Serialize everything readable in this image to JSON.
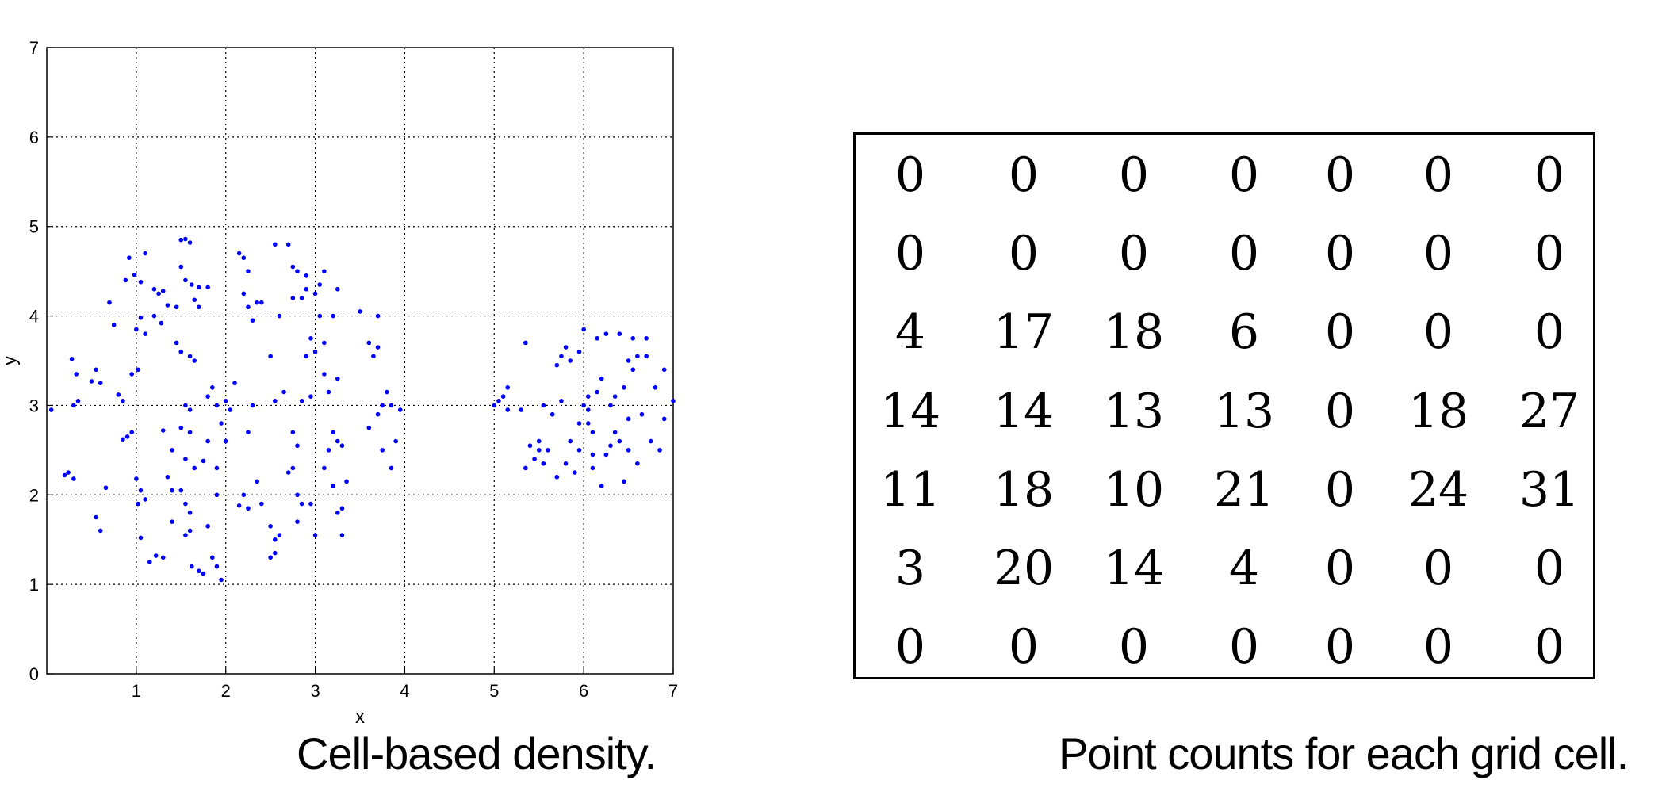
{
  "chart_data": [
    {
      "type": "scatter",
      "xlabel": "x",
      "ylabel": "y",
      "xlim": [
        0,
        7
      ],
      "ylim": [
        0,
        7
      ],
      "xticks": [
        "1",
        "2",
        "3",
        "4",
        "5",
        "6",
        "7"
      ],
      "yticks": [
        "0",
        "1",
        "2",
        "3",
        "4",
        "5",
        "6",
        "7"
      ],
      "grid": true,
      "point_color": "#0000ff",
      "points": [
        [
          0.05,
          2.95
        ],
        [
          0.28,
          3.52
        ],
        [
          0.3,
          3.0
        ],
        [
          0.33,
          3.35
        ],
        [
          0.35,
          3.05
        ],
        [
          0.2,
          2.22
        ],
        [
          0.24,
          2.25
        ],
        [
          0.3,
          2.18
        ],
        [
          0.5,
          3.27
        ],
        [
          0.55,
          3.4
        ],
        [
          0.6,
          3.25
        ],
        [
          0.66,
          2.08
        ],
        [
          0.55,
          1.75
        ],
        [
          0.6,
          1.6
        ],
        [
          0.7,
          4.15
        ],
        [
          0.75,
          3.9
        ],
        [
          0.8,
          3.12
        ],
        [
          0.85,
          3.05
        ],
        [
          0.85,
          2.62
        ],
        [
          0.9,
          2.65
        ],
        [
          0.95,
          2.7
        ],
        [
          0.88,
          4.4
        ],
        [
          0.92,
          4.65
        ],
        [
          0.98,
          4.46
        ],
        [
          1.05,
          4.38
        ],
        [
          1.1,
          4.7
        ],
        [
          1.0,
          3.85
        ],
        [
          1.05,
          3.98
        ],
        [
          1.1,
          3.8
        ],
        [
          0.95,
          3.35
        ],
        [
          1.02,
          3.4
        ],
        [
          1.0,
          2.18
        ],
        [
          1.05,
          2.05
        ],
        [
          1.1,
          1.95
        ],
        [
          1.05,
          1.52
        ],
        [
          1.15,
          1.25
        ],
        [
          1.22,
          1.32
        ],
        [
          1.3,
          1.3
        ],
        [
          1.02,
          1.9
        ],
        [
          1.2,
          4.3
        ],
        [
          1.25,
          4.25
        ],
        [
          1.3,
          4.28
        ],
        [
          1.2,
          4.0
        ],
        [
          1.28,
          3.92
        ],
        [
          1.35,
          4.12
        ],
        [
          1.45,
          4.1
        ],
        [
          1.5,
          4.85
        ],
        [
          1.55,
          4.86
        ],
        [
          1.6,
          4.82
        ],
        [
          1.5,
          4.55
        ],
        [
          1.55,
          4.4
        ],
        [
          1.62,
          4.35
        ],
        [
          1.7,
          4.32
        ],
        [
          1.8,
          4.32
        ],
        [
          1.65,
          4.18
        ],
        [
          1.7,
          4.1
        ],
        [
          1.45,
          3.7
        ],
        [
          1.5,
          3.6
        ],
        [
          1.6,
          3.55
        ],
        [
          1.65,
          3.5
        ],
        [
          1.55,
          3.0
        ],
        [
          1.6,
          2.95
        ],
        [
          1.5,
          2.75
        ],
        [
          1.6,
          2.7
        ],
        [
          1.55,
          2.4
        ],
        [
          1.65,
          2.3
        ],
        [
          1.75,
          2.38
        ],
        [
          1.5,
          2.05
        ],
        [
          1.55,
          1.9
        ],
        [
          1.6,
          1.8
        ],
        [
          1.6,
          1.6
        ],
        [
          1.55,
          1.55
        ],
        [
          1.62,
          1.2
        ],
        [
          1.7,
          1.15
        ],
        [
          1.75,
          1.12
        ],
        [
          1.8,
          1.65
        ],
        [
          1.85,
          1.3
        ],
        [
          1.9,
          1.2
        ],
        [
          1.95,
          1.05
        ],
        [
          1.9,
          2.0
        ],
        [
          1.9,
          2.3
        ],
        [
          1.8,
          3.1
        ],
        [
          1.85,
          3.2
        ],
        [
          1.9,
          3.0
        ],
        [
          1.95,
          2.8
        ],
        [
          2.0,
          2.6
        ],
        [
          1.3,
          2.72
        ],
        [
          1.4,
          2.5
        ],
        [
          1.35,
          2.2
        ],
        [
          1.4,
          2.05
        ],
        [
          1.4,
          1.7
        ],
        [
          1.8,
          2.6
        ],
        [
          2.0,
          3.05
        ],
        [
          2.05,
          2.95
        ],
        [
          2.1,
          3.25
        ],
        [
          2.15,
          4.7
        ],
        [
          2.2,
          4.65
        ],
        [
          2.25,
          4.5
        ],
        [
          2.2,
          4.25
        ],
        [
          2.25,
          4.1
        ],
        [
          2.3,
          3.95
        ],
        [
          2.35,
          4.15
        ],
        [
          2.4,
          4.15
        ],
        [
          2.3,
          3.0
        ],
        [
          2.25,
          2.7
        ],
        [
          2.2,
          2.0
        ],
        [
          2.15,
          1.88
        ],
        [
          2.25,
          1.85
        ],
        [
          2.35,
          2.15
        ],
        [
          2.4,
          1.9
        ],
        [
          2.5,
          1.65
        ],
        [
          2.55,
          1.5
        ],
        [
          2.5,
          1.3
        ],
        [
          2.55,
          1.35
        ],
        [
          2.6,
          1.55
        ],
        [
          2.55,
          3.05
        ],
        [
          2.65,
          3.15
        ],
        [
          2.5,
          3.55
        ],
        [
          2.6,
          4.0
        ],
        [
          2.55,
          4.8
        ],
        [
          2.7,
          4.8
        ],
        [
          2.75,
          4.55
        ],
        [
          2.8,
          4.5
        ],
        [
          2.9,
          4.45
        ],
        [
          2.75,
          4.2
        ],
        [
          2.85,
          4.2
        ],
        [
          2.9,
          4.3
        ],
        [
          3.0,
          4.25
        ],
        [
          3.05,
          4.35
        ],
        [
          3.1,
          4.5
        ],
        [
          2.95,
          3.75
        ],
        [
          2.9,
          3.55
        ],
        [
          3.0,
          3.6
        ],
        [
          2.85,
          3.05
        ],
        [
          2.95,
          3.1
        ],
        [
          2.75,
          2.7
        ],
        [
          2.8,
          2.55
        ],
        [
          2.7,
          2.25
        ],
        [
          2.75,
          2.3
        ],
        [
          2.8,
          2.0
        ],
        [
          2.85,
          1.9
        ],
        [
          2.8,
          1.7
        ],
        [
          2.95,
          1.9
        ],
        [
          3.0,
          1.55
        ],
        [
          3.1,
          3.7
        ],
        [
          3.2,
          4.0
        ],
        [
          3.05,
          4.0
        ],
        [
          3.25,
          4.3
        ],
        [
          3.1,
          3.35
        ],
        [
          3.15,
          3.15
        ],
        [
          3.25,
          3.3
        ],
        [
          3.2,
          2.7
        ],
        [
          3.25,
          2.6
        ],
        [
          3.3,
          2.55
        ],
        [
          3.15,
          2.5
        ],
        [
          3.1,
          2.3
        ],
        [
          3.2,
          2.1
        ],
        [
          3.25,
          1.8
        ],
        [
          3.3,
          1.85
        ],
        [
          3.3,
          1.55
        ],
        [
          3.35,
          2.15
        ],
        [
          3.5,
          4.05
        ],
        [
          3.6,
          3.7
        ],
        [
          3.65,
          3.55
        ],
        [
          3.7,
          3.65
        ],
        [
          3.6,
          2.75
        ],
        [
          3.7,
          2.9
        ],
        [
          3.75,
          3.0
        ],
        [
          3.75,
          2.5
        ],
        [
          3.8,
          3.15
        ],
        [
          3.85,
          3.0
        ],
        [
          3.85,
          2.3
        ],
        [
          3.9,
          2.6
        ],
        [
          3.7,
          4.0
        ],
        [
          3.95,
          2.95
        ],
        [
          5.0,
          3.0
        ],
        [
          5.05,
          3.05
        ],
        [
          5.1,
          3.1
        ],
        [
          5.15,
          3.2
        ],
        [
          5.15,
          2.95
        ],
        [
          5.3,
          2.95
        ],
        [
          5.35,
          3.7
        ],
        [
          5.4,
          2.55
        ],
        [
          5.35,
          2.3
        ],
        [
          5.45,
          2.4
        ],
        [
          5.5,
          2.5
        ],
        [
          5.55,
          3.0
        ],
        [
          5.5,
          2.6
        ],
        [
          5.55,
          2.35
        ],
        [
          5.6,
          2.5
        ],
        [
          5.65,
          2.9
        ],
        [
          5.7,
          2.2
        ],
        [
          5.75,
          3.05
        ],
        [
          5.7,
          3.45
        ],
        [
          5.75,
          3.55
        ],
        [
          5.8,
          3.65
        ],
        [
          5.85,
          3.5
        ],
        [
          5.8,
          2.35
        ],
        [
          5.85,
          2.6
        ],
        [
          5.9,
          2.25
        ],
        [
          5.95,
          2.5
        ],
        [
          5.95,
          3.6
        ],
        [
          6.0,
          3.85
        ],
        [
          5.95,
          2.8
        ],
        [
          6.0,
          3.0
        ],
        [
          6.05,
          2.8
        ],
        [
          6.05,
          3.1
        ],
        [
          6.1,
          2.7
        ],
        [
          6.1,
          2.45
        ],
        [
          6.1,
          2.3
        ],
        [
          6.15,
          3.15
        ],
        [
          6.2,
          3.3
        ],
        [
          6.15,
          3.75
        ],
        [
          6.2,
          2.1
        ],
        [
          6.25,
          2.45
        ],
        [
          6.3,
          2.55
        ],
        [
          6.25,
          3.8
        ],
        [
          6.3,
          3.0
        ],
        [
          6.35,
          2.7
        ],
        [
          6.4,
          2.6
        ],
        [
          6.45,
          3.2
        ],
        [
          6.45,
          2.15
        ],
        [
          6.5,
          2.5
        ],
        [
          6.5,
          3.5
        ],
        [
          6.55,
          3.75
        ],
        [
          6.55,
          3.4
        ],
        [
          6.6,
          3.55
        ],
        [
          6.6,
          2.35
        ],
        [
          6.65,
          2.9
        ],
        [
          6.7,
          3.75
        ],
        [
          6.7,
          3.55
        ],
        [
          6.75,
          2.6
        ],
        [
          6.8,
          3.2
        ],
        [
          6.85,
          2.5
        ],
        [
          6.9,
          3.4
        ],
        [
          6.9,
          2.85
        ],
        [
          7.0,
          3.05
        ],
        [
          6.4,
          3.8
        ],
        [
          6.5,
          2.85
        ],
        [
          6.35,
          3.1
        ],
        [
          6.05,
          2.95
        ]
      ]
    },
    {
      "type": "table",
      "rows": [
        [
          "0",
          "0",
          "0",
          "0",
          "0",
          "0",
          "0"
        ],
        [
          "0",
          "0",
          "0",
          "0",
          "0",
          "0",
          "0"
        ],
        [
          "4",
          "17",
          "18",
          "6",
          "0",
          "0",
          "0"
        ],
        [
          "14",
          "14",
          "13",
          "13",
          "0",
          "18",
          "27"
        ],
        [
          "11",
          "18",
          "10",
          "21",
          "0",
          "24",
          "31"
        ],
        [
          "3",
          "20",
          "14",
          "4",
          "0",
          "0",
          "0"
        ],
        [
          "0",
          "0",
          "0",
          "0",
          "0",
          "0",
          "0"
        ]
      ]
    }
  ],
  "captions": {
    "left": "Cell-based density.",
    "right": "Point counts for each grid cell."
  }
}
